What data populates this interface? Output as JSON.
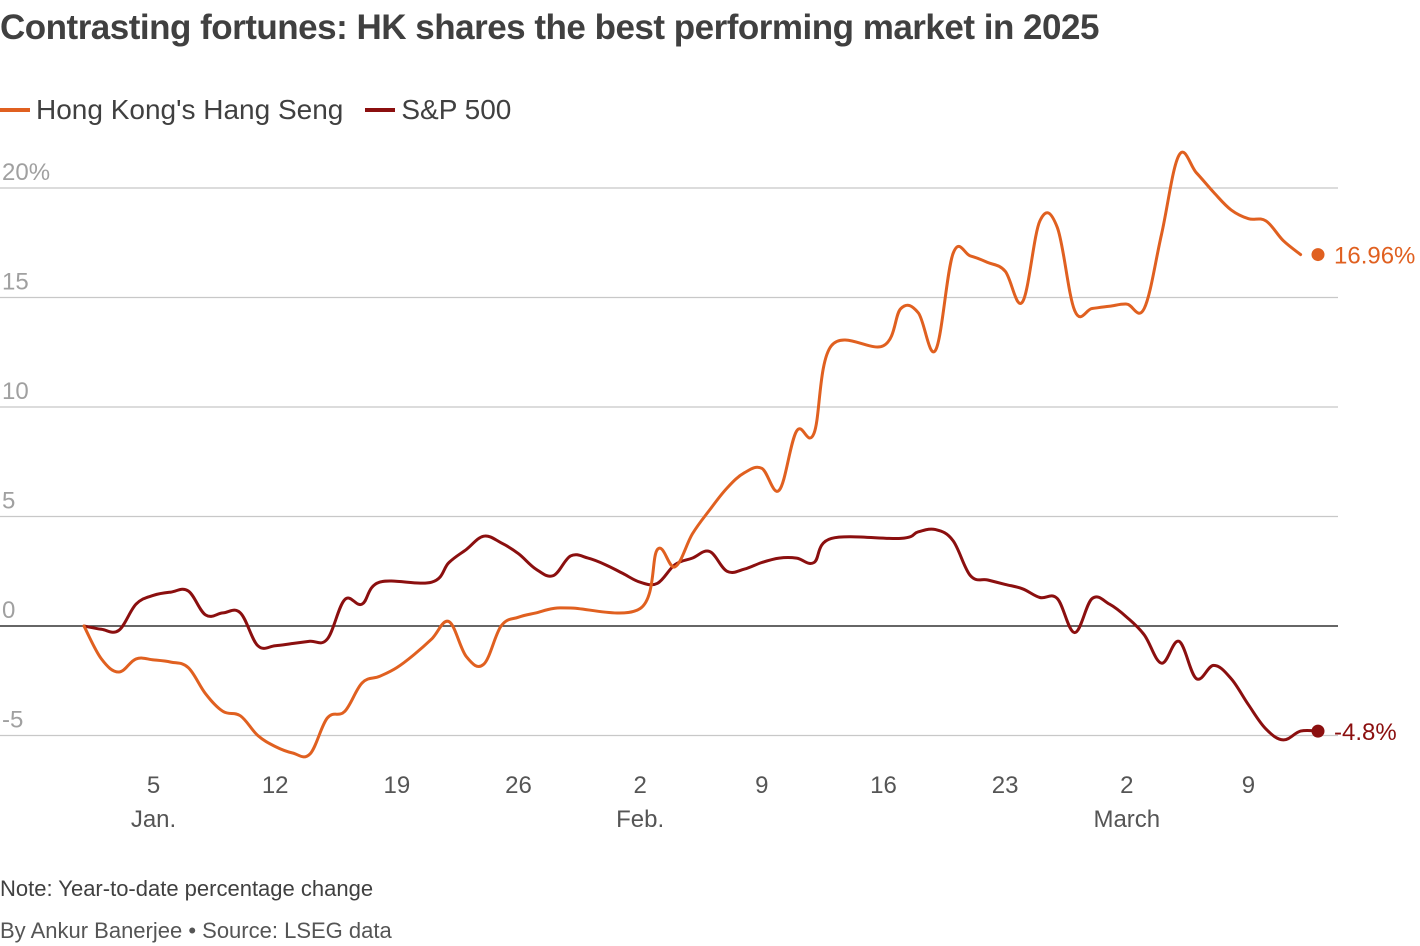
{
  "header": {
    "title": "Contrasting fortunes: HK shares the best performing market in 2025"
  },
  "footer": {
    "note": "Note: Year-to-date percentage change",
    "credit": "By Ankur Banerjee • Source: LSEG data"
  },
  "chart_data": {
    "type": "line",
    "title": "Contrasting fortunes: HK shares the best performing market in 2025",
    "xlabel": "",
    "ylabel": "",
    "ylim": [
      -6,
      22
    ],
    "xlim": [
      0,
      72
    ],
    "grid": true,
    "legend_position": "top-left",
    "y_ticks": [
      {
        "value": 20,
        "label": "20%"
      },
      {
        "value": 15,
        "label": "15"
      },
      {
        "value": 10,
        "label": "10"
      },
      {
        "value": 5,
        "label": "5"
      },
      {
        "value": 0,
        "label": "0"
      },
      {
        "value": -5,
        "label": "-5"
      }
    ],
    "x_ticks": [
      {
        "day": 4,
        "label": "5",
        "month": "Jan."
      },
      {
        "day": 11,
        "label": "12"
      },
      {
        "day": 18,
        "label": "19"
      },
      {
        "day": 25,
        "label": "26"
      },
      {
        "day": 32,
        "label": "2",
        "month": "Feb."
      },
      {
        "day": 39,
        "label": "9"
      },
      {
        "day": 46,
        "label": "16"
      },
      {
        "day": 53,
        "label": "23"
      },
      {
        "day": 60,
        "label": "2",
        "month": "March"
      },
      {
        "day": 67,
        "label": "9"
      }
    ],
    "series": [
      {
        "name": "Hong Kong's Hang Seng",
        "color": "#e06020",
        "end_label": "16.96%",
        "points": [
          [
            0,
            0
          ],
          [
            1,
            -1.5
          ],
          [
            2,
            -2.1
          ],
          [
            3,
            -1.5
          ],
          [
            4,
            -1.55
          ],
          [
            5,
            -1.65
          ],
          [
            6,
            -1.9
          ],
          [
            7,
            -3.1
          ],
          [
            8,
            -3.9
          ],
          [
            9,
            -4.1
          ],
          [
            10,
            -5.0
          ],
          [
            11,
            -5.5
          ],
          [
            12,
            -5.8
          ],
          [
            13,
            -5.85
          ],
          [
            14,
            -4.2
          ],
          [
            15,
            -3.9
          ],
          [
            16,
            -2.6
          ],
          [
            17,
            -2.3
          ],
          [
            18,
            -1.9
          ],
          [
            19,
            -1.3
          ],
          [
            20,
            -0.6
          ],
          [
            21,
            0.2
          ],
          [
            22,
            -1.4
          ],
          [
            23,
            -1.75
          ],
          [
            24,
            0.0
          ],
          [
            25,
            0.4
          ],
          [
            26,
            0.6
          ],
          [
            27,
            0.8
          ],
          [
            28,
            0.82
          ],
          [
            32,
            0.8
          ],
          [
            33,
            3.5
          ],
          [
            34,
            2.7
          ],
          [
            35,
            4.2
          ],
          [
            36,
            5.3
          ],
          [
            37,
            6.3
          ],
          [
            38,
            7.0
          ],
          [
            39,
            7.2
          ],
          [
            40,
            6.2
          ],
          [
            41,
            8.9
          ],
          [
            42,
            8.8
          ],
          [
            43,
            12.8
          ],
          [
            46,
            12.8
          ],
          [
            47,
            14.5
          ],
          [
            48,
            14.3
          ],
          [
            49,
            12.6
          ],
          [
            50,
            17.0
          ],
          [
            51,
            16.9
          ],
          [
            52,
            16.6
          ],
          [
            53,
            16.2
          ],
          [
            54,
            14.8
          ],
          [
            55,
            18.5
          ],
          [
            56,
            18.2
          ],
          [
            57,
            14.4
          ],
          [
            58,
            14.5
          ],
          [
            59,
            14.6
          ],
          [
            60,
            14.7
          ],
          [
            61,
            14.5
          ],
          [
            62,
            17.9
          ],
          [
            63,
            21.5
          ],
          [
            64,
            20.7
          ],
          [
            65,
            19.8
          ],
          [
            66,
            19.0
          ],
          [
            67,
            18.6
          ],
          [
            68,
            18.5
          ],
          [
            69,
            17.6
          ],
          [
            70,
            16.96
          ]
        ]
      },
      {
        "name": "S&P 500",
        "color": "#8b0f0f",
        "end_label": "-4.8%",
        "points": [
          [
            0,
            0
          ],
          [
            1,
            -0.15
          ],
          [
            2,
            -0.2
          ],
          [
            3,
            1.0
          ],
          [
            4,
            1.4
          ],
          [
            5,
            1.55
          ],
          [
            6,
            1.6
          ],
          [
            7,
            0.5
          ],
          [
            8,
            0.6
          ],
          [
            9,
            0.6
          ],
          [
            10,
            -0.9
          ],
          [
            11,
            -0.9
          ],
          [
            12,
            -0.8
          ],
          [
            13,
            -0.7
          ],
          [
            14,
            -0.6
          ],
          [
            15,
            1.2
          ],
          [
            16,
            1.0
          ],
          [
            17,
            2.0
          ],
          [
            20,
            2.0
          ],
          [
            21,
            2.9
          ],
          [
            22,
            3.5
          ],
          [
            23,
            4.1
          ],
          [
            24,
            3.8
          ],
          [
            25,
            3.3
          ],
          [
            26,
            2.6
          ],
          [
            27,
            2.3
          ],
          [
            28,
            3.2
          ],
          [
            29,
            3.1
          ],
          [
            30,
            2.8
          ],
          [
            31,
            2.4
          ],
          [
            32,
            2.0
          ],
          [
            33,
            1.95
          ],
          [
            34,
            2.8
          ],
          [
            35,
            3.1
          ],
          [
            36,
            3.4
          ],
          [
            37,
            2.5
          ],
          [
            38,
            2.6
          ],
          [
            39,
            2.9
          ],
          [
            40,
            3.1
          ],
          [
            41,
            3.1
          ],
          [
            42,
            2.9
          ],
          [
            43,
            4.0
          ],
          [
            47,
            4.0
          ],
          [
            48,
            4.3
          ],
          [
            49,
            4.4
          ],
          [
            50,
            3.9
          ],
          [
            51,
            2.3
          ],
          [
            52,
            2.1
          ],
          [
            53,
            1.9
          ],
          [
            54,
            1.7
          ],
          [
            55,
            1.3
          ],
          [
            56,
            1.25
          ],
          [
            57,
            -0.3
          ],
          [
            58,
            1.25
          ],
          [
            59,
            1.0
          ],
          [
            60,
            0.4
          ],
          [
            61,
            -0.4
          ],
          [
            62,
            -1.7
          ],
          [
            63,
            -0.7
          ],
          [
            64,
            -2.4
          ],
          [
            65,
            -1.8
          ],
          [
            66,
            -2.4
          ],
          [
            67,
            -3.6
          ],
          [
            68,
            -4.7
          ],
          [
            69,
            -5.2
          ],
          [
            70,
            -4.8
          ],
          [
            71,
            -4.8
          ]
        ]
      }
    ]
  }
}
